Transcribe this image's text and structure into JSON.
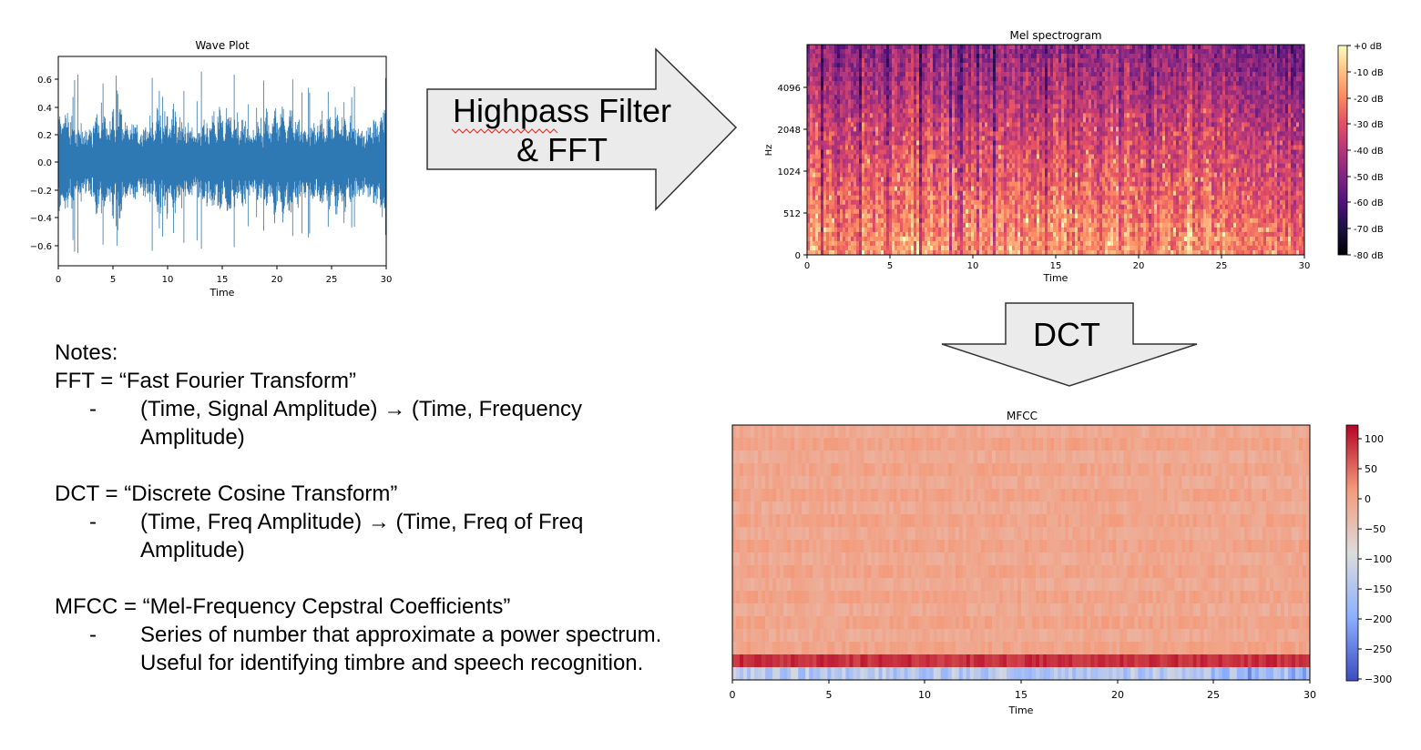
{
  "wave_plot": {
    "title": "Wave Plot",
    "xlabel": "Time",
    "x_ticks": [
      "0",
      "5",
      "10",
      "15",
      "20",
      "25",
      "30"
    ],
    "y_ticks": [
      "0.6",
      "0.4",
      "0.2",
      "0.0",
      "−0.2",
      "−0.4",
      "−0.6"
    ],
    "color": "#2e78b4"
  },
  "arrow_fft": {
    "line1": "Highpass Filter",
    "line2": "& FFT"
  },
  "mel": {
    "title": "Mel spectrogram",
    "xlabel": "Time",
    "ylabel": "Hz",
    "x_ticks": [
      "0",
      "5",
      "10",
      "15",
      "20",
      "25",
      "30"
    ],
    "y_ticks": [
      "4096",
      "2048",
      "1024",
      "512",
      "0"
    ],
    "colorbar_ticks": [
      "+0 dB",
      "-10 dB",
      "-20 dB",
      "-30 dB",
      "-40 dB",
      "-50 dB",
      "-60 dB",
      "-70 dB",
      "-80 dB"
    ]
  },
  "arrow_dct": {
    "label": "DCT"
  },
  "mfcc": {
    "title": "MFCC",
    "xlabel": "Time",
    "x_ticks": [
      "0",
      "5",
      "10",
      "15",
      "20",
      "25",
      "30"
    ],
    "colorbar_ticks": [
      "100",
      "50",
      "0",
      "−50",
      "−100",
      "−150",
      "−200",
      "−250",
      "−300"
    ]
  },
  "notes": {
    "heading": "Notes:",
    "fft_def": "FFT = “Fast Fourier Transform”",
    "fft_bullet": "(Time, Signal Amplitude) → (Time, Frequency Amplitude)",
    "dct_def": "DCT = “Discrete Cosine Transform”",
    "dct_bullet": "(Time, Freq Amplitude) → (Time, Freq of Freq Amplitude)",
    "mfcc_def": "MFCC = “Mel-Frequency Cepstral Coefficients”",
    "mfcc_bullet": "Series of number that approximate a power spectrum. Useful for identifying timbre and speech recognition.",
    "dash": "-"
  }
}
